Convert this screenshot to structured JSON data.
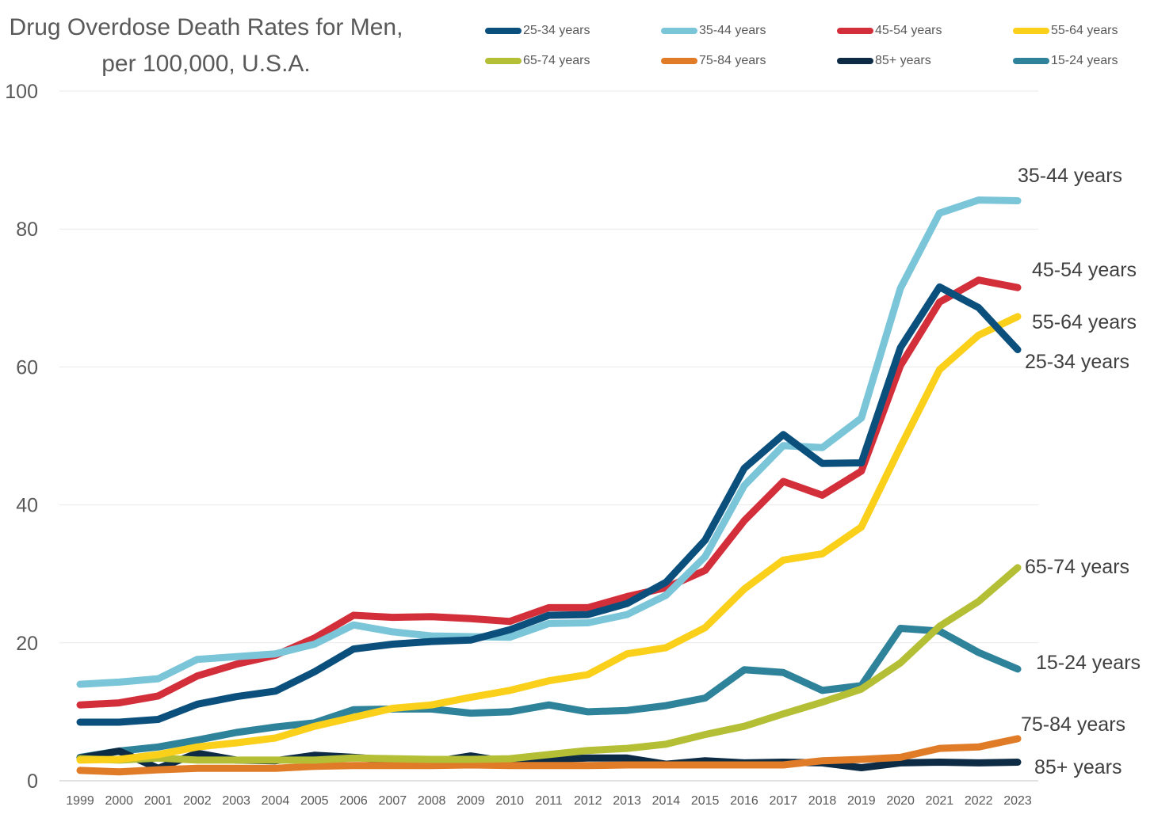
{
  "chart_data": {
    "type": "line",
    "title_lines": [
      "Drug Overdose Death Rates for Men,",
      "per 100,000, U.S.A."
    ],
    "xlabel": "",
    "ylabel": "",
    "ylim": [
      0,
      100
    ],
    "yticks": [
      0,
      20,
      40,
      60,
      80,
      100
    ],
    "grid": true,
    "legend_position": "top",
    "categories": [
      "1999",
      "2000",
      "2001",
      "2002",
      "2003",
      "2004",
      "2005",
      "2006",
      "2007",
      "2008",
      "2009",
      "2010",
      "2011",
      "2012",
      "2013",
      "2014",
      "2015",
      "2016",
      "2017",
      "2018",
      "2019",
      "2020",
      "2021",
      "2022",
      "2023"
    ],
    "series": [
      {
        "name": "25-34 years",
        "end_label": "25-34 years",
        "color": "#0B4F7C",
        "values": [
          8.5,
          8.5,
          8.9,
          11.1,
          12.2,
          13.0,
          15.8,
          19.1,
          19.8,
          20.2,
          20.4,
          21.9,
          24.0,
          24.1,
          25.7,
          28.8,
          34.9,
          45.3,
          50.2,
          46.0,
          46.1,
          62.8,
          71.6,
          68.6,
          62.5
        ]
      },
      {
        "name": "35-44 years",
        "end_label": "35-44 years",
        "color": "#7AC5D8",
        "values": [
          14.0,
          14.3,
          14.8,
          17.6,
          18.0,
          18.4,
          19.8,
          22.6,
          21.6,
          21.0,
          20.9,
          20.8,
          22.8,
          22.9,
          24.1,
          26.9,
          32.5,
          42.8,
          48.6,
          48.3,
          52.6,
          71.4,
          82.3,
          84.2,
          84.1
        ]
      },
      {
        "name": "45-54 years",
        "end_label": "45-54 years",
        "color": "#D32F3B",
        "values": [
          11.0,
          11.3,
          12.3,
          15.2,
          16.9,
          18.2,
          20.7,
          24.0,
          23.7,
          23.8,
          23.5,
          23.1,
          25.1,
          25.1,
          26.7,
          28.0,
          30.5,
          37.7,
          43.4,
          41.4,
          44.9,
          60.2,
          69.4,
          72.6,
          71.5
        ]
      },
      {
        "name": "55-64 years",
        "end_label": "55-64 years",
        "color": "#FAD01B",
        "values": [
          3.0,
          3.1,
          3.8,
          4.9,
          5.5,
          6.2,
          7.9,
          9.2,
          10.5,
          11.0,
          12.1,
          13.1,
          14.5,
          15.4,
          18.4,
          19.3,
          22.2,
          27.8,
          32.0,
          32.9,
          36.8,
          48.4,
          59.6,
          64.6,
          67.3
        ]
      },
      {
        "name": "65-74 years",
        "end_label": "65-74 years",
        "color": "#B5BF35",
        "values": [
          3.2,
          3.0,
          3.3,
          3.0,
          3.0,
          3.0,
          3.0,
          3.3,
          3.2,
          3.1,
          3.1,
          3.2,
          3.8,
          4.4,
          4.7,
          5.3,
          6.7,
          7.9,
          9.7,
          11.4,
          13.3,
          17.1,
          22.4,
          26.0,
          30.9
        ]
      },
      {
        "name": "75-84 years",
        "end_label": "75-84 years",
        "color": "#E07C28",
        "values": [
          1.5,
          1.3,
          1.6,
          1.8,
          1.8,
          1.8,
          2.1,
          2.2,
          2.2,
          2.2,
          2.3,
          2.2,
          2.2,
          2.2,
          2.3,
          2.3,
          2.3,
          2.3,
          2.3,
          2.9,
          3.1,
          3.4,
          4.7,
          4.9,
          6.1
        ]
      },
      {
        "name": "85+ years",
        "end_label": "85+ years",
        "color": "#0D2B45",
        "values": [
          3.3,
          4.3,
          1.8,
          4.0,
          3.0,
          2.9,
          3.7,
          3.4,
          3.0,
          2.7,
          3.6,
          2.7,
          3.1,
          3.3,
          3.3,
          2.4,
          2.9,
          2.6,
          2.7,
          2.6,
          1.9,
          2.6,
          2.7,
          2.6,
          2.7
        ]
      },
      {
        "name": "15-24 years",
        "end_label": "15-24 years",
        "color": "#2E8299",
        "values": [
          3.4,
          4.3,
          4.9,
          5.9,
          7.0,
          7.8,
          8.4,
          10.3,
          10.4,
          10.4,
          9.8,
          10.0,
          11.0,
          10.0,
          10.2,
          10.9,
          12.0,
          16.1,
          15.7,
          13.1,
          13.8,
          22.1,
          21.7,
          18.6,
          16.2
        ]
      }
    ],
    "legend": [
      {
        "label": "25-34 years",
        "color": "#0B4F7C"
      },
      {
        "label": "35-44 years",
        "color": "#7AC5D8"
      },
      {
        "label": "45-54 years",
        "color": "#D32F3B"
      },
      {
        "label": "55-64 years",
        "color": "#FAD01B"
      },
      {
        "label": "65-74 years",
        "color": "#B5BF35"
      },
      {
        "label": "75-84 years",
        "color": "#E07C28"
      },
      {
        "label": "85+ years",
        "color": "#0D2B45"
      },
      {
        "label": "15-24 years",
        "color": "#2E8299"
      }
    ]
  }
}
